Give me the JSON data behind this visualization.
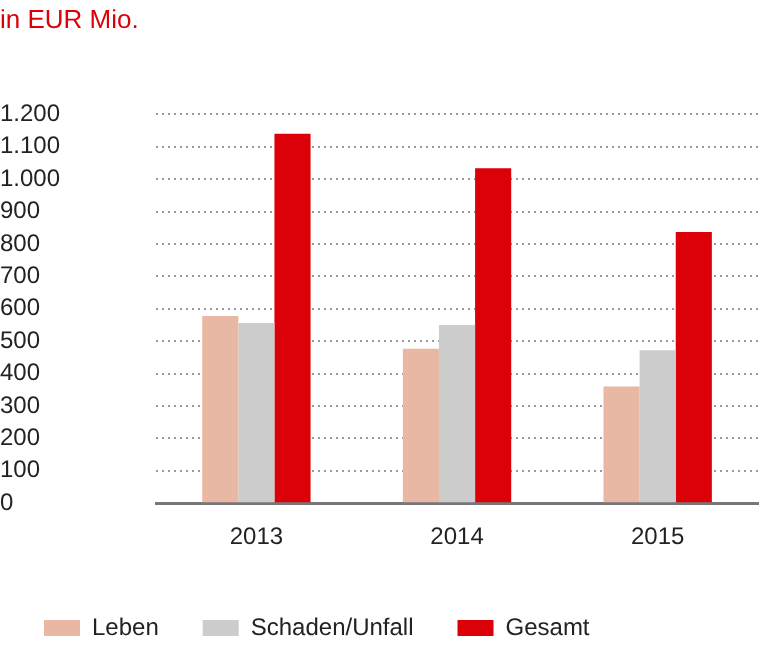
{
  "chart_data": {
    "type": "bar",
    "title": "in EUR Mio.",
    "categories": [
      "2013",
      "2014",
      "2015"
    ],
    "series": [
      {
        "name": "Leben",
        "color": "#e8b8a4",
        "values": [
          578,
          477,
          360
        ]
      },
      {
        "name": "Schaden/Unfall",
        "color": "#cccccc",
        "values": [
          556,
          550,
          472
        ]
      },
      {
        "name": "Gesamt",
        "color": "#dc0008",
        "values": [
          1140,
          1034,
          837
        ]
      }
    ],
    "ylim": [
      0,
      1200
    ],
    "yticks": [
      0,
      100,
      200,
      300,
      400,
      500,
      600,
      700,
      800,
      900,
      {
        "value": 1000,
        "label": "1.000"
      },
      {
        "value": 1100,
        "label": "1.100"
      },
      {
        "value": 1200,
        "label": "1.200"
      }
    ],
    "grid": "y",
    "legend": "bottom"
  }
}
